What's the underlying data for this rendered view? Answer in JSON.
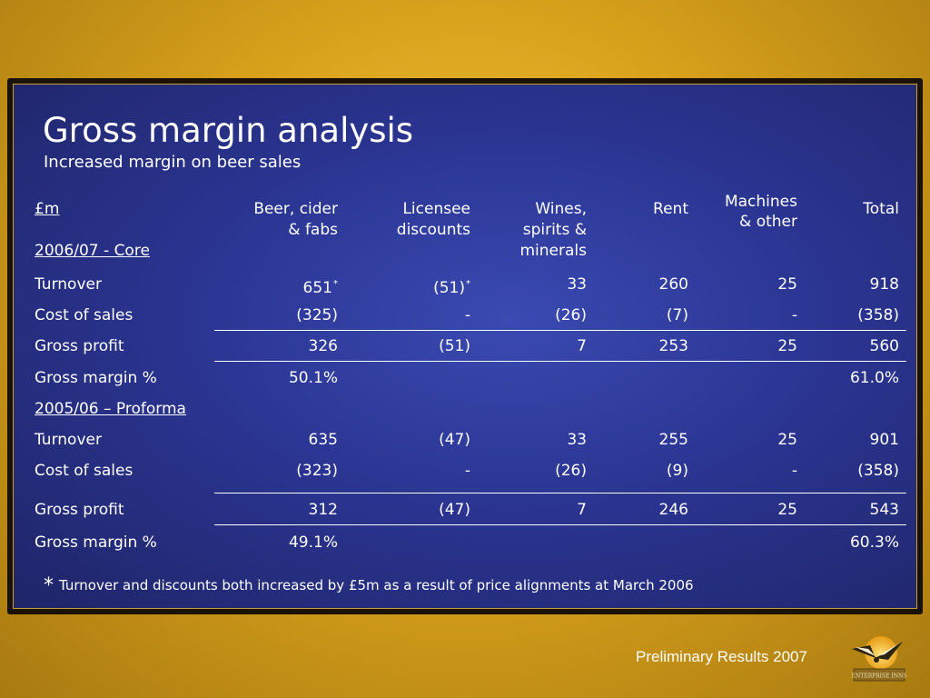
{
  "slide": {
    "title": "Gross margin analysis",
    "subtitle": "Increased margin on beer sales",
    "footnote_symbol": "*",
    "footnote": "Turnover and discounts both increased by £5m as a result of price alignments at March 2006",
    "footer": "Preliminary Results 2007",
    "logo_text": "ENTERPRISE INNS"
  },
  "table": {
    "unit_label": "£m",
    "columns": [
      [
        "Beer, cider",
        "& fabs"
      ],
      [
        "Licensee",
        "discounts"
      ],
      [
        "Wines,",
        "spirits &",
        "minerals"
      ],
      [
        "Rent"
      ],
      [
        "Machines",
        "& other"
      ],
      [
        "Total"
      ]
    ],
    "sections": [
      {
        "heading": "2006/07 - Core",
        "rows": [
          {
            "label": "Turnover",
            "values": [
              "651",
              "(51)",
              "33",
              "260",
              "25",
              "918"
            ],
            "marks": [
              "*",
              "*",
              "",
              "",
              "",
              ""
            ]
          },
          {
            "label": "Cost of sales",
            "values": [
              "(325)",
              "-",
              "(26)",
              "(7)",
              "-",
              "(358)"
            ]
          },
          {
            "label": "Gross profit",
            "values": [
              "326",
              "(51)",
              "7",
              "253",
              "25",
              "560"
            ]
          },
          {
            "label": "Gross margin %",
            "values": [
              "50.1%",
              "",
              "",
              "",
              "",
              "61.0%"
            ]
          }
        ]
      },
      {
        "heading": "2005/06 – Proforma",
        "rows": [
          {
            "label": "Turnover",
            "values": [
              "635",
              "(47)",
              "33",
              "255",
              "25",
              "901"
            ]
          },
          {
            "label": "Cost of sales",
            "values": [
              "(323)",
              "-",
              "(26)",
              "(9)",
              "-",
              "(358)"
            ]
          },
          {
            "label": "Gross profit",
            "values": [
              "312",
              "(47)",
              "7",
              "246",
              "25",
              "543"
            ]
          },
          {
            "label": "Gross margin %",
            "values": [
              "49.1%",
              "",
              "",
              "",
              "",
              "60.3%"
            ]
          }
        ]
      }
    ]
  },
  "colors": {
    "panel": "#2b3592",
    "frame_gold": "#d9a21c",
    "text": "#ffffff"
  }
}
